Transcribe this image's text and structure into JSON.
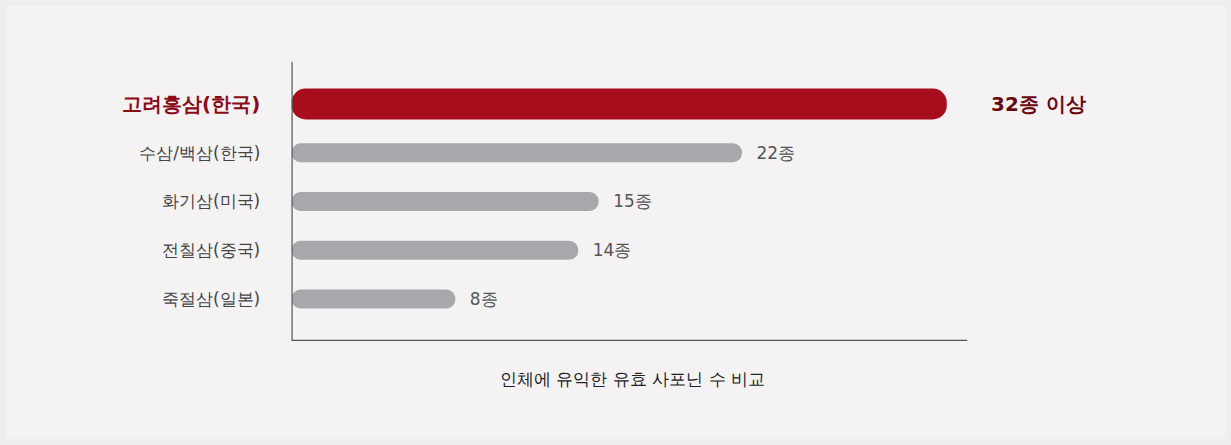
{
  "chart_data": {
    "type": "bar",
    "orientation": "horizontal",
    "xlabel": "인체에 유익한 유효 사포닌 수 비교",
    "categories": [
      "고려홍삼(한국)",
      "수삼/백삼(한국)",
      "화기삼(미국)",
      "전칠삼(중국)",
      "죽절삼(일본)"
    ],
    "values": [
      32,
      22,
      15,
      14,
      8
    ],
    "value_labels": [
      "32종 이상",
      "22종",
      "15종",
      "14종",
      "8종"
    ],
    "colors": [
      "#a80d1e",
      "#a8a8ac",
      "#a8a8ac",
      "#a8a8ac",
      "#a8a8ac"
    ],
    "xlim": [
      0,
      33
    ],
    "data_labels": true,
    "tick_labels": "y",
    "grid": false
  }
}
